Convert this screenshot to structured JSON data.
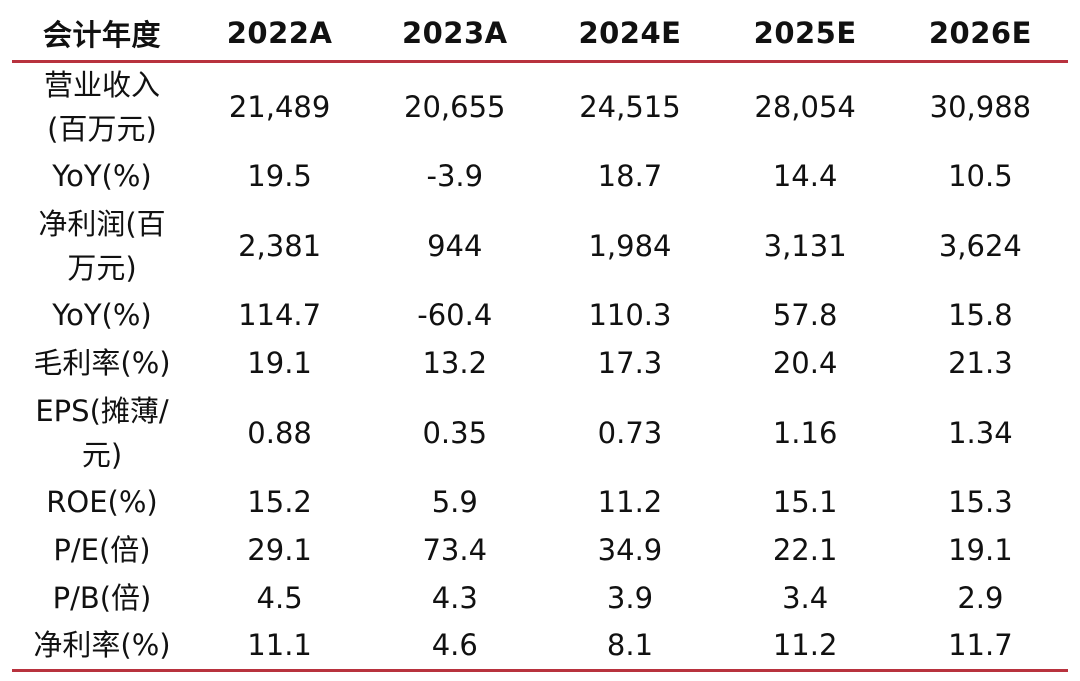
{
  "table": {
    "header": [
      "会计年度",
      "2022A",
      "2023A",
      "2024E",
      "2025E",
      "2026E"
    ],
    "rows": [
      {
        "label": "营业收入\n(百万元)",
        "values": [
          "21,489",
          "20,655",
          "24,515",
          "28,054",
          "30,988"
        ]
      },
      {
        "label": "YoY(%)",
        "values": [
          "19.5",
          "-3.9",
          "18.7",
          "14.4",
          "10.5"
        ]
      },
      {
        "label": "净利润(百\n万元)",
        "values": [
          "2,381",
          "944",
          "1,984",
          "3,131",
          "3,624"
        ]
      },
      {
        "label": "YoY(%)",
        "values": [
          "114.7",
          "-60.4",
          "110.3",
          "57.8",
          "15.8"
        ]
      },
      {
        "label": "毛利率(%)",
        "values": [
          "19.1",
          "13.2",
          "17.3",
          "20.4",
          "21.3"
        ]
      },
      {
        "label": "EPS(摊薄/\n元)",
        "values": [
          "0.88",
          "0.35",
          "0.73",
          "1.16",
          "1.34"
        ]
      },
      {
        "label": "ROE(%)",
        "values": [
          "15.2",
          "5.9",
          "11.2",
          "15.1",
          "15.3"
        ]
      },
      {
        "label": "P/E(倍)",
        "values": [
          "29.1",
          "73.4",
          "34.9",
          "22.1",
          "19.1"
        ]
      },
      {
        "label": "P/B(倍)",
        "values": [
          "4.5",
          "4.3",
          "3.9",
          "3.4",
          "2.9"
        ]
      },
      {
        "label": "净利率(%)",
        "values": [
          "11.1",
          "4.6",
          "8.1",
          "11.2",
          "11.7"
        ]
      }
    ],
    "colors": {
      "rule": "#b8323e",
      "text": "#111111"
    }
  }
}
